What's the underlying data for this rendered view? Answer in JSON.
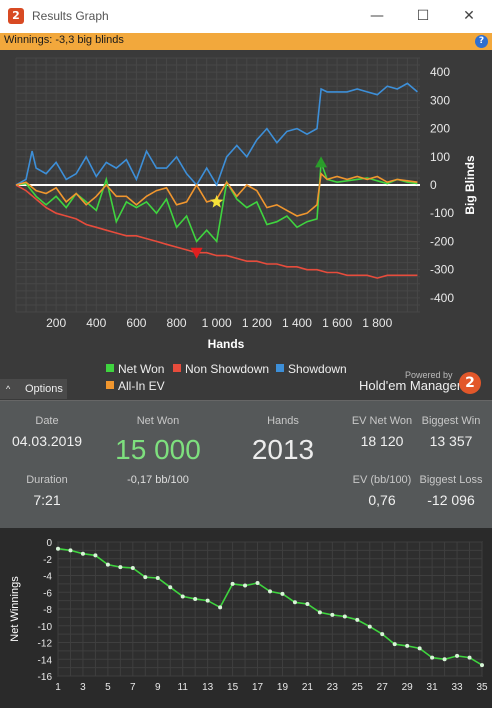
{
  "window": {
    "title": "Results Graph",
    "icon_label": "2",
    "minimize_glyph": "—",
    "maximize_glyph": "☐",
    "close_glyph": "✕"
  },
  "winnings_bar": {
    "text": "Winnings: -3,3 big blinds",
    "help_glyph": "?"
  },
  "legend": {
    "items": [
      {
        "label": "Net Won",
        "color": "#3fd43f"
      },
      {
        "label": "Non Showdown",
        "color": "#e74c3c"
      },
      {
        "label": "Showdown",
        "color": "#3d8fd8"
      },
      {
        "label": "All-In EV",
        "color": "#f0962e"
      }
    ],
    "powered_by": "Powered by",
    "brand": "Hold'em Manager",
    "brand_logo": "2"
  },
  "options_button": {
    "label": "Options",
    "chevron": "^"
  },
  "stats": {
    "date_label": "Date",
    "date_value": "04.03.2019",
    "net_won_label": "Net Won",
    "net_won_value": "15 000",
    "net_won_sub": "-0,17 bb/100",
    "hands_label": "Hands",
    "hands_value": "2013",
    "ev_net_won_label": "EV Net Won",
    "ev_net_won_value": "18 120",
    "biggest_win_label": "Biggest Win",
    "biggest_win_value": "13 357",
    "duration_label": "Duration",
    "duration_value": "7:21",
    "ev_bb100_label": "EV (bb/100)",
    "ev_bb100_value": "0,76",
    "biggest_loss_label": "Biggest Loss",
    "biggest_loss_value": "-12 096"
  },
  "chart_data": [
    {
      "type": "line",
      "xlabel": "Hands",
      "ylabel": "Big Blinds",
      "xlim": [
        0,
        2013
      ],
      "ylim": [
        -450,
        450
      ],
      "x_ticks": [
        "200",
        "400",
        "600",
        "800",
        "1 000",
        "1 200",
        "1 400",
        "1 600",
        "1 800"
      ],
      "x_tick_values": [
        200,
        400,
        600,
        800,
        1000,
        1200,
        1400,
        1600,
        1800
      ],
      "y_ticks": [
        "400",
        "300",
        "200",
        "100",
        "0",
        "-100",
        "-200",
        "-300",
        "-400"
      ],
      "y_tick_values": [
        400,
        300,
        200,
        100,
        0,
        -100,
        -200,
        -300,
        -400
      ],
      "grid": true,
      "legend": "bottom",
      "series": [
        {
          "name": "Net Won",
          "color": "#3fd43f",
          "x": [
            0,
            50,
            100,
            150,
            200,
            250,
            300,
            350,
            400,
            450,
            500,
            550,
            600,
            650,
            700,
            750,
            800,
            850,
            900,
            950,
            1000,
            1050,
            1100,
            1150,
            1200,
            1250,
            1300,
            1350,
            1400,
            1450,
            1500,
            1520,
            1550,
            1600,
            1650,
            1700,
            1750,
            1800,
            1850,
            1900,
            1950,
            2000
          ],
          "values": [
            0,
            5,
            -40,
            -70,
            -40,
            -80,
            -30,
            -60,
            -90,
            20,
            -130,
            -60,
            -80,
            -60,
            -100,
            -50,
            -150,
            -110,
            -200,
            -160,
            -200,
            10,
            -50,
            -80,
            -60,
            -140,
            -130,
            -110,
            -150,
            -130,
            -120,
            80,
            20,
            10,
            15,
            20,
            25,
            15,
            5,
            20,
            10,
            5
          ]
        },
        {
          "name": "Non Showdown",
          "color": "#e74c3c",
          "x": [
            0,
            50,
            100,
            150,
            200,
            250,
            300,
            350,
            400,
            450,
            500,
            550,
            600,
            650,
            700,
            750,
            800,
            850,
            900,
            950,
            1000,
            1050,
            1100,
            1150,
            1200,
            1250,
            1300,
            1350,
            1400,
            1450,
            1500,
            1550,
            1600,
            1650,
            1700,
            1750,
            1800,
            1850,
            1900,
            1950,
            2000
          ],
          "values": [
            0,
            -20,
            -50,
            -80,
            -100,
            -110,
            -120,
            -140,
            -150,
            -160,
            -170,
            -180,
            -180,
            -190,
            -200,
            -210,
            -220,
            -230,
            -240,
            -240,
            -250,
            -250,
            -260,
            -270,
            -270,
            -280,
            -280,
            -290,
            -290,
            -300,
            -300,
            -310,
            -310,
            -320,
            -320,
            -320,
            -330,
            -320,
            -320,
            -320,
            -320
          ]
        },
        {
          "name": "Showdown",
          "color": "#3d8fd8",
          "x": [
            0,
            50,
            80,
            100,
            150,
            200,
            250,
            300,
            350,
            400,
            450,
            500,
            550,
            600,
            650,
            700,
            750,
            800,
            850,
            900,
            950,
            1000,
            1050,
            1100,
            1150,
            1200,
            1250,
            1300,
            1350,
            1400,
            1450,
            1500,
            1520,
            1550,
            1600,
            1650,
            1700,
            1750,
            1800,
            1850,
            1900,
            1950,
            2000
          ],
          "values": [
            0,
            20,
            120,
            60,
            40,
            80,
            20,
            40,
            100,
            30,
            80,
            60,
            90,
            20,
            120,
            60,
            60,
            100,
            40,
            0,
            60,
            0,
            100,
            140,
            100,
            160,
            200,
            150,
            190,
            200,
            180,
            200,
            340,
            330,
            330,
            330,
            340,
            330,
            320,
            350,
            340,
            360,
            330
          ]
        },
        {
          "name": "All-In EV",
          "color": "#f0962e",
          "x": [
            0,
            50,
            100,
            150,
            200,
            250,
            300,
            350,
            400,
            450,
            500,
            550,
            600,
            650,
            700,
            750,
            800,
            850,
            900,
            950,
            1000,
            1050,
            1100,
            1150,
            1200,
            1250,
            1300,
            1350,
            1400,
            1450,
            1500,
            1520,
            1550,
            1600,
            1650,
            1700,
            1750,
            1800,
            1850,
            1900,
            1950,
            2000
          ],
          "values": [
            0,
            10,
            -20,
            -30,
            -10,
            -60,
            -30,
            -70,
            -40,
            0,
            -40,
            -40,
            -70,
            -40,
            -20,
            -10,
            -70,
            -60,
            0,
            -60,
            -50,
            10,
            -40,
            0,
            -20,
            -80,
            -70,
            -90,
            -110,
            -100,
            -70,
            40,
            20,
            30,
            20,
            30,
            20,
            30,
            10,
            20,
            15,
            10
          ]
        }
      ]
    },
    {
      "type": "line",
      "ylabel": "Net Winnings",
      "xlim": [
        1,
        35
      ],
      "ylim": [
        -16,
        0
      ],
      "x_ticks": [
        "1",
        "3",
        "5",
        "7",
        "9",
        "11",
        "13",
        "15",
        "17",
        "19",
        "21",
        "23",
        "25",
        "27",
        "29",
        "31",
        "33",
        "35"
      ],
      "y_ticks": [
        "0",
        "-2",
        "-4",
        "-6",
        "-8",
        "-10",
        "-12",
        "-14",
        "-16"
      ],
      "grid": true,
      "series": [
        {
          "color": "#3fd43f",
          "x": [
            1,
            2,
            3,
            4,
            5,
            6,
            7,
            8,
            9,
            10,
            11,
            12,
            13,
            14,
            15,
            16,
            17,
            18,
            19,
            20,
            21,
            22,
            23,
            24,
            25,
            26,
            27,
            28,
            29,
            30,
            31,
            32,
            33,
            34,
            35
          ],
          "values": [
            -0.8,
            -1.0,
            -1.4,
            -1.6,
            -2.7,
            -3.0,
            -3.1,
            -4.2,
            -4.3,
            -5.4,
            -6.5,
            -6.8,
            -7.0,
            -7.8,
            -5.0,
            -5.2,
            -4.9,
            -5.9,
            -6.2,
            -7.2,
            -7.4,
            -8.4,
            -8.7,
            -8.9,
            -9.3,
            -10.1,
            -11.0,
            -12.2,
            -12.4,
            -12.7,
            -13.8,
            -14.0,
            -13.6,
            -13.8,
            -14.7
          ]
        }
      ]
    }
  ]
}
